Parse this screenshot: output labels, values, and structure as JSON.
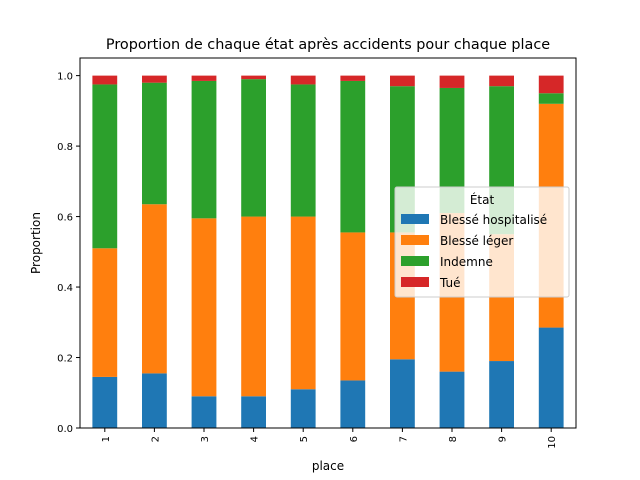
{
  "chart_data": {
    "type": "bar",
    "stacked": true,
    "title": "Proportion de chaque état après accidents pour chaque place",
    "xlabel": "place",
    "ylabel": "Proportion",
    "ylim": [
      0,
      1.05
    ],
    "yticks": [
      "0.0",
      "0.2",
      "0.4",
      "0.6",
      "0.8",
      "1.0"
    ],
    "categories": [
      "1",
      "2",
      "3",
      "4",
      "5",
      "6",
      "7",
      "8",
      "9",
      "10"
    ],
    "series": [
      {
        "name": "Blessé hospitalisé",
        "color": "#1f77b4",
        "values": [
          0.145,
          0.155,
          0.09,
          0.09,
          0.11,
          0.135,
          0.195,
          0.16,
          0.19,
          0.285
        ]
      },
      {
        "name": "Blessé léger",
        "color": "#ff7f0e",
        "values": [
          0.365,
          0.48,
          0.505,
          0.51,
          0.49,
          0.42,
          0.36,
          0.45,
          0.36,
          0.635
        ]
      },
      {
        "name": "Indemne",
        "color": "#2ca02c",
        "values": [
          0.465,
          0.345,
          0.39,
          0.39,
          0.375,
          0.43,
          0.415,
          0.355,
          0.42,
          0.03
        ]
      },
      {
        "name": "Tué",
        "color": "#d62728",
        "values": [
          0.025,
          0.02,
          0.015,
          0.01,
          0.025,
          0.015,
          0.03,
          0.035,
          0.03,
          0.05
        ]
      }
    ],
    "legend": {
      "title": "État",
      "position": "center-right"
    },
    "grid": false
  }
}
